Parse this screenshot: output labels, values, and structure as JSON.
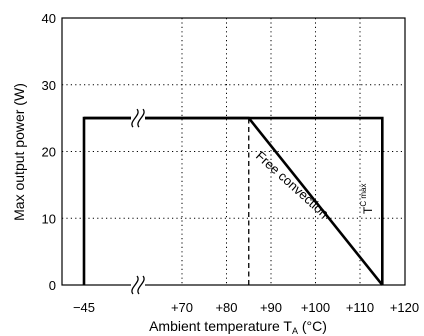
{
  "chart_data": {
    "type": "line",
    "title": "",
    "xlabel": "Ambient temperature T_A (°C)",
    "xlabel_parts": {
      "main": "Ambient temperature T",
      "sub": "A",
      "unit": " (°C)"
    },
    "ylabel": "Max output power (W)",
    "x_ticks": [
      {
        "value": -45,
        "label": "−45"
      },
      {
        "value": 70,
        "label": "+70"
      },
      {
        "value": 80,
        "label": "+80"
      },
      {
        "value": 90,
        "label": "+90"
      },
      {
        "value": 100,
        "label": "+100"
      },
      {
        "value": 110,
        "label": "+110"
      },
      {
        "value": 120,
        "label": "+120"
      }
    ],
    "y_ticks": [
      0,
      10,
      20,
      30,
      40
    ],
    "ylim": [
      0,
      40
    ],
    "grid": true,
    "axis_break": "x-axis between −45 and +70",
    "series": [
      {
        "name": "Free convection",
        "points": [
          [
            -45,
            0
          ],
          [
            -45,
            25
          ],
          [
            85,
            25
          ],
          [
            115,
            0
          ]
        ]
      },
      {
        "name": "T_C max",
        "points": [
          [
            -45,
            25
          ],
          [
            115,
            25
          ],
          [
            115,
            0
          ]
        ]
      }
    ],
    "annotations": [
      {
        "text": "Free convection",
        "kind": "series-label"
      },
      {
        "text": "T",
        "sub": "C max",
        "kind": "series-label"
      }
    ],
    "reference_lines": [
      {
        "x": 85,
        "y_range": [
          0,
          25
        ],
        "style": "dashed"
      }
    ]
  }
}
